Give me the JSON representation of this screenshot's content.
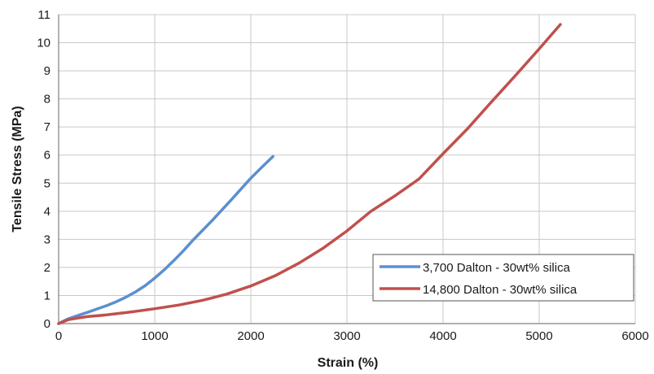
{
  "chart_data": {
    "type": "line",
    "title": "",
    "xlabel": "Strain (%)",
    "ylabel": "Tensile Stress (MPa)",
    "xlim": [
      0,
      6000
    ],
    "ylim": [
      0,
      11
    ],
    "x_ticks": [
      "0",
      "1000",
      "2000",
      "3000",
      "4000",
      "5000",
      "6000"
    ],
    "y_ticks": [
      "0",
      "1",
      "2",
      "3",
      "4",
      "5",
      "6",
      "7",
      "8",
      "9",
      "10",
      "11"
    ],
    "grid": true,
    "legend_position": "bottom-right",
    "series": [
      {
        "name": "3,700 Dalton - 30wt% silica",
        "color": "#5b8fcf",
        "x": [
          0,
          100,
          200,
          300,
          400,
          500,
          600,
          700,
          800,
          900,
          1000,
          1100,
          1200,
          1300,
          1400,
          1500,
          1600,
          1700,
          1800,
          1900,
          2000,
          2100,
          2230
        ],
        "y": [
          0,
          0.17,
          0.29,
          0.4,
          0.52,
          0.64,
          0.78,
          0.94,
          1.13,
          1.35,
          1.62,
          1.92,
          2.25,
          2.6,
          2.98,
          3.33,
          3.68,
          4.05,
          4.42,
          4.8,
          5.18,
          5.52,
          5.95
        ]
      },
      {
        "name": "14,800 Dalton - 30wt% silica",
        "color": "#c0504d",
        "x": [
          0,
          100,
          200,
          300,
          500,
          750,
          1000,
          1250,
          1500,
          1750,
          2000,
          2250,
          2500,
          2750,
          3000,
          3250,
          3500,
          3750,
          4000,
          4250,
          4500,
          4750,
          5000,
          5220
        ],
        "y": [
          0,
          0.14,
          0.2,
          0.25,
          0.31,
          0.41,
          0.53,
          0.66,
          0.83,
          1.05,
          1.34,
          1.7,
          2.15,
          2.68,
          3.3,
          4.0,
          4.55,
          5.15,
          6.05,
          6.92,
          7.88,
          8.82,
          9.78,
          10.65
        ]
      }
    ]
  }
}
